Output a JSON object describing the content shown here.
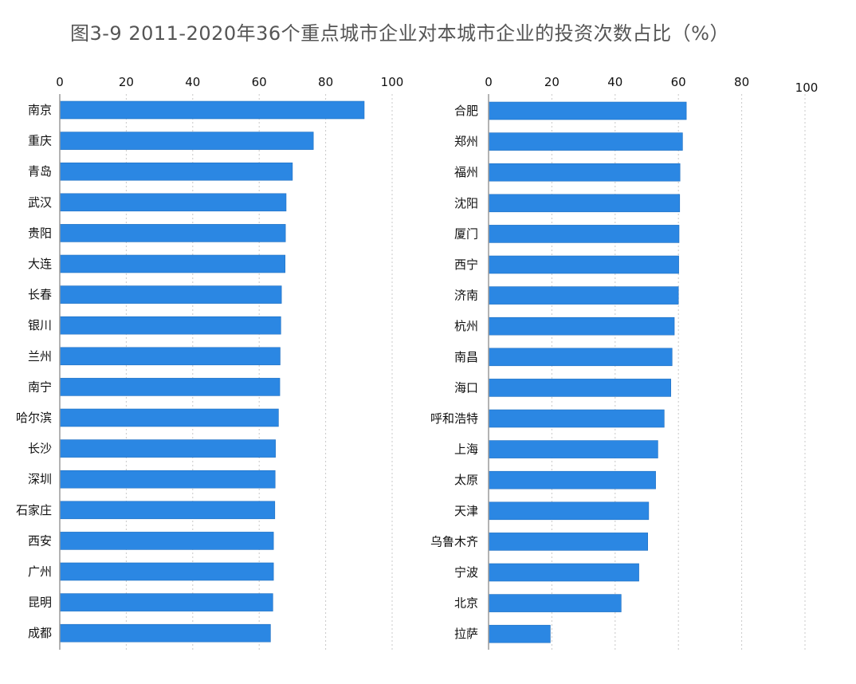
{
  "title": "图3-9   2011-2020年36个重点城市企业对本城市企业的投资次数占比（%）",
  "colors": {
    "bar": "#2b87e3",
    "grid": "#c8c8c8",
    "axis": "#9a9a9a"
  },
  "chart_data": [
    {
      "type": "bar",
      "orientation": "horizontal",
      "xlim": [
        0,
        100
      ],
      "ticks": [
        0,
        20,
        40,
        60,
        80,
        100
      ],
      "grid": true,
      "categories": [
        "南京",
        "重庆",
        "青岛",
        "武汉",
        "贵阳",
        "大连",
        "长春",
        "银川",
        "兰州",
        "南宁",
        "哈尔滨",
        "长沙",
        "深圳",
        "石家庄",
        "西安",
        "广州",
        "昆明",
        "成都"
      ],
      "values": [
        91.6,
        76.3,
        70.0,
        68.1,
        67.9,
        67.8,
        66.7,
        66.5,
        66.3,
        66.2,
        65.8,
        64.9,
        64.8,
        64.7,
        64.3,
        64.3,
        64.1,
        63.4
      ]
    },
    {
      "type": "bar",
      "orientation": "horizontal",
      "xlim": [
        0,
        100
      ],
      "ticks": [
        0,
        20,
        40,
        60,
        80,
        100
      ],
      "grid": true,
      "categories": [
        "合肥",
        "郑州",
        "福州",
        "沈阳",
        "厦门",
        "西宁",
        "济南",
        "杭州",
        "南昌",
        "海口",
        "呼和浩特",
        "上海",
        "太原",
        "天津",
        "乌鲁木齐",
        "宁波",
        "北京",
        "拉萨"
      ],
      "values": [
        62.5,
        61.3,
        60.5,
        60.4,
        60.2,
        60.1,
        60.0,
        58.7,
        58.0,
        57.6,
        55.5,
        53.5,
        52.8,
        50.6,
        50.3,
        47.5,
        41.9,
        19.5
      ]
    }
  ]
}
